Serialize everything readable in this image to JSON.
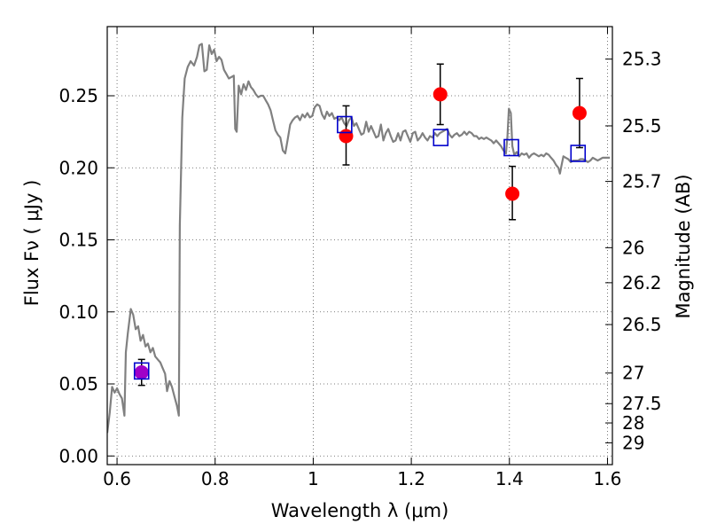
{
  "chart_data": {
    "type": "scatter",
    "xlabel": "Wavelength  λ (μm)",
    "ylabel": "Flux  Fν  ( μJy )",
    "y2label": "Magnitude (AB)",
    "xlim": [
      0.58,
      1.61
    ],
    "ylim": [
      -0.006,
      0.298
    ],
    "grid": true,
    "x_ticks": [
      {
        "value": 0.6,
        "label": "0.6"
      },
      {
        "value": 0.8,
        "label": "0.8"
      },
      {
        "value": 1.0,
        "label": "1"
      },
      {
        "value": 1.2,
        "label": "1.2"
      },
      {
        "value": 1.4,
        "label": "1.4"
      },
      {
        "value": 1.6,
        "label": "1.6"
      }
    ],
    "y_ticks": [
      {
        "value": 0.0,
        "label": "0.00"
      },
      {
        "value": 0.05,
        "label": "0.05"
      },
      {
        "value": 0.1,
        "label": "0.10"
      },
      {
        "value": 0.15,
        "label": "0.15"
      },
      {
        "value": 0.2,
        "label": "0.20"
      },
      {
        "value": 0.25,
        "label": "0.25"
      }
    ],
    "y2_ticks": [
      {
        "value": 25.3,
        "label": "25.3"
      },
      {
        "value": 25.5,
        "label": "25.5"
      },
      {
        "value": 25.7,
        "label": "25.7"
      },
      {
        "value": 26.0,
        "label": "26"
      },
      {
        "value": 26.2,
        "label": "26.2"
      },
      {
        "value": 26.5,
        "label": "26.5"
      },
      {
        "value": 27.0,
        "label": "27"
      },
      {
        "value": 27.5,
        "label": "27.5"
      },
      {
        "value": 28.0,
        "label": "28"
      },
      {
        "value": 29.0,
        "label": "29"
      }
    ],
    "colors": {
      "model": "#808080",
      "observed": "#ff0000",
      "synthetic": "#0000cc",
      "overlap": "#a000c8",
      "grid": "#555555"
    },
    "model_spectrum": [
      [
        0.58,
        0.016
      ],
      [
        0.585,
        0.03
      ],
      [
        0.59,
        0.048
      ],
      [
        0.595,
        0.044
      ],
      [
        0.6,
        0.047
      ],
      [
        0.605,
        0.043
      ],
      [
        0.61,
        0.04
      ],
      [
        0.615,
        0.028
      ],
      [
        0.618,
        0.072
      ],
      [
        0.622,
        0.085
      ],
      [
        0.628,
        0.102
      ],
      [
        0.633,
        0.098
      ],
      [
        0.638,
        0.088
      ],
      [
        0.643,
        0.09
      ],
      [
        0.648,
        0.08
      ],
      [
        0.653,
        0.084
      ],
      [
        0.658,
        0.076
      ],
      [
        0.663,
        0.078
      ],
      [
        0.668,
        0.072
      ],
      [
        0.673,
        0.075
      ],
      [
        0.678,
        0.069
      ],
      [
        0.683,
        0.067
      ],
      [
        0.688,
        0.065
      ],
      [
        0.693,
        0.061
      ],
      [
        0.698,
        0.057
      ],
      [
        0.702,
        0.045
      ],
      [
        0.707,
        0.052
      ],
      [
        0.712,
        0.048
      ],
      [
        0.718,
        0.04
      ],
      [
        0.722,
        0.035
      ],
      [
        0.726,
        0.028
      ],
      [
        0.728,
        0.16
      ],
      [
        0.733,
        0.235
      ],
      [
        0.738,
        0.262
      ],
      [
        0.744,
        0.27
      ],
      [
        0.75,
        0.274
      ],
      [
        0.757,
        0.271
      ],
      [
        0.763,
        0.277
      ],
      [
        0.768,
        0.285
      ],
      [
        0.773,
        0.286
      ],
      [
        0.778,
        0.267
      ],
      [
        0.783,
        0.268
      ],
      [
        0.788,
        0.285
      ],
      [
        0.793,
        0.279
      ],
      [
        0.798,
        0.282
      ],
      [
        0.803,
        0.274
      ],
      [
        0.808,
        0.277
      ],
      [
        0.813,
        0.275
      ],
      [
        0.818,
        0.268
      ],
      [
        0.823,
        0.265
      ],
      [
        0.828,
        0.262
      ],
      [
        0.833,
        0.263
      ],
      [
        0.838,
        0.264
      ],
      [
        0.841,
        0.227
      ],
      [
        0.844,
        0.225
      ],
      [
        0.848,
        0.257
      ],
      [
        0.853,
        0.251
      ],
      [
        0.858,
        0.258
      ],
      [
        0.863,
        0.254
      ],
      [
        0.868,
        0.26
      ],
      [
        0.873,
        0.256
      ],
      [
        0.878,
        0.254
      ],
      [
        0.883,
        0.251
      ],
      [
        0.888,
        0.249
      ],
      [
        0.893,
        0.25
      ],
      [
        0.898,
        0.25
      ],
      [
        0.903,
        0.247
      ],
      [
        0.908,
        0.244
      ],
      [
        0.913,
        0.24
      ],
      [
        0.918,
        0.233
      ],
      [
        0.923,
        0.226
      ],
      [
        0.928,
        0.223
      ],
      [
        0.933,
        0.221
      ],
      [
        0.938,
        0.212
      ],
      [
        0.943,
        0.21
      ],
      [
        0.948,
        0.22
      ],
      [
        0.953,
        0.23
      ],
      [
        0.958,
        0.233
      ],
      [
        0.963,
        0.235
      ],
      [
        0.968,
        0.236
      ],
      [
        0.973,
        0.233
      ],
      [
        0.978,
        0.237
      ],
      [
        0.983,
        0.235
      ],
      [
        0.988,
        0.238
      ],
      [
        0.993,
        0.235
      ],
      [
        0.998,
        0.236
      ],
      [
        1.003,
        0.242
      ],
      [
        1.008,
        0.244
      ],
      [
        1.013,
        0.243
      ],
      [
        1.018,
        0.237
      ],
      [
        1.023,
        0.234
      ],
      [
        1.028,
        0.239
      ],
      [
        1.033,
        0.236
      ],
      [
        1.038,
        0.238
      ],
      [
        1.043,
        0.234
      ],
      [
        1.048,
        0.235
      ],
      [
        1.053,
        0.233
      ],
      [
        1.058,
        0.235
      ],
      [
        1.063,
        0.231
      ],
      [
        1.068,
        0.229
      ],
      [
        1.073,
        0.233
      ],
      [
        1.078,
        0.235
      ],
      [
        1.083,
        0.229
      ],
      [
        1.088,
        0.231
      ],
      [
        1.093,
        0.227
      ],
      [
        1.098,
        0.223
      ],
      [
        1.103,
        0.224
      ],
      [
        1.108,
        0.232
      ],
      [
        1.113,
        0.225
      ],
      [
        1.118,
        0.229
      ],
      [
        1.123,
        0.225
      ],
      [
        1.128,
        0.221
      ],
      [
        1.133,
        0.222
      ],
      [
        1.138,
        0.23
      ],
      [
        1.143,
        0.219
      ],
      [
        1.148,
        0.224
      ],
      [
        1.153,
        0.227
      ],
      [
        1.158,
        0.222
      ],
      [
        1.163,
        0.218
      ],
      [
        1.168,
        0.219
      ],
      [
        1.173,
        0.224
      ],
      [
        1.178,
        0.219
      ],
      [
        1.183,
        0.225
      ],
      [
        1.188,
        0.226
      ],
      [
        1.193,
        0.222
      ],
      [
        1.198,
        0.218
      ],
      [
        1.203,
        0.224
      ],
      [
        1.208,
        0.225
      ],
      [
        1.213,
        0.219
      ],
      [
        1.218,
        0.221
      ],
      [
        1.223,
        0.224
      ],
      [
        1.228,
        0.221
      ],
      [
        1.233,
        0.219
      ],
      [
        1.238,
        0.222
      ],
      [
        1.243,
        0.221
      ],
      [
        1.248,
        0.224
      ],
      [
        1.253,
        0.222
      ],
      [
        1.258,
        0.224
      ],
      [
        1.263,
        0.225
      ],
      [
        1.268,
        0.226
      ],
      [
        1.273,
        0.227
      ],
      [
        1.278,
        0.223
      ],
      [
        1.283,
        0.221
      ],
      [
        1.288,
        0.223
      ],
      [
        1.293,
        0.224
      ],
      [
        1.298,
        0.222
      ],
      [
        1.303,
        0.223
      ],
      [
        1.308,
        0.225
      ],
      [
        1.313,
        0.223
      ],
      [
        1.318,
        0.225
      ],
      [
        1.323,
        0.224
      ],
      [
        1.328,
        0.222
      ],
      [
        1.333,
        0.222
      ],
      [
        1.338,
        0.22
      ],
      [
        1.343,
        0.221
      ],
      [
        1.348,
        0.22
      ],
      [
        1.353,
        0.221
      ],
      [
        1.358,
        0.22
      ],
      [
        1.363,
        0.219
      ],
      [
        1.368,
        0.217
      ],
      [
        1.373,
        0.219
      ],
      [
        1.378,
        0.217
      ],
      [
        1.383,
        0.215
      ],
      [
        1.388,
        0.212
      ],
      [
        1.393,
        0.21
      ],
      [
        1.396,
        0.222
      ],
      [
        1.399,
        0.241
      ],
      [
        1.403,
        0.238
      ],
      [
        1.406,
        0.215
      ],
      [
        1.41,
        0.209
      ],
      [
        1.415,
        0.211
      ],
      [
        1.42,
        0.208
      ],
      [
        1.425,
        0.21
      ],
      [
        1.43,
        0.209
      ],
      [
        1.435,
        0.21
      ],
      [
        1.44,
        0.207
      ],
      [
        1.445,
        0.209
      ],
      [
        1.45,
        0.21
      ],
      [
        1.455,
        0.209
      ],
      [
        1.46,
        0.208
      ],
      [
        1.465,
        0.209
      ],
      [
        1.47,
        0.208
      ],
      [
        1.475,
        0.21
      ],
      [
        1.48,
        0.209
      ],
      [
        1.485,
        0.207
      ],
      [
        1.49,
        0.205
      ],
      [
        1.495,
        0.202
      ],
      [
        1.5,
        0.2
      ],
      [
        1.503,
        0.196
      ],
      [
        1.506,
        0.201
      ],
      [
        1.51,
        0.208
      ],
      [
        1.515,
        0.207
      ],
      [
        1.52,
        0.206
      ],
      [
        1.525,
        0.204
      ],
      [
        1.53,
        0.205
      ],
      [
        1.535,
        0.205
      ],
      [
        1.54,
        0.205
      ],
      [
        1.545,
        0.206
      ],
      [
        1.55,
        0.206
      ],
      [
        1.555,
        0.205
      ],
      [
        1.56,
        0.204
      ],
      [
        1.565,
        0.205
      ],
      [
        1.57,
        0.207
      ],
      [
        1.575,
        0.206
      ],
      [
        1.58,
        0.205
      ],
      [
        1.585,
        0.206
      ],
      [
        1.59,
        0.207
      ],
      [
        1.595,
        0.207
      ],
      [
        1.6,
        0.207
      ],
      [
        1.605,
        0.207
      ]
    ],
    "observed": [
      {
        "x": 0.65,
        "y": 0.058,
        "yerr": [
          0.049,
          0.067
        ]
      },
      {
        "x": 1.067,
        "y": 0.222,
        "yerr": [
          0.202,
          0.243
        ]
      },
      {
        "x": 1.259,
        "y": 0.251,
        "yerr": [
          0.23,
          0.272
        ]
      },
      {
        "x": 1.406,
        "y": 0.182,
        "yerr": [
          0.164,
          0.201
        ]
      },
      {
        "x": 1.543,
        "y": 0.238,
        "yerr": [
          0.214,
          0.262
        ]
      }
    ],
    "synthetic": [
      {
        "x": 0.65,
        "y": 0.059
      },
      {
        "x": 1.064,
        "y": 0.23
      },
      {
        "x": 1.26,
        "y": 0.221
      },
      {
        "x": 1.404,
        "y": 0.214
      },
      {
        "x": 1.54,
        "y": 0.21
      }
    ]
  }
}
